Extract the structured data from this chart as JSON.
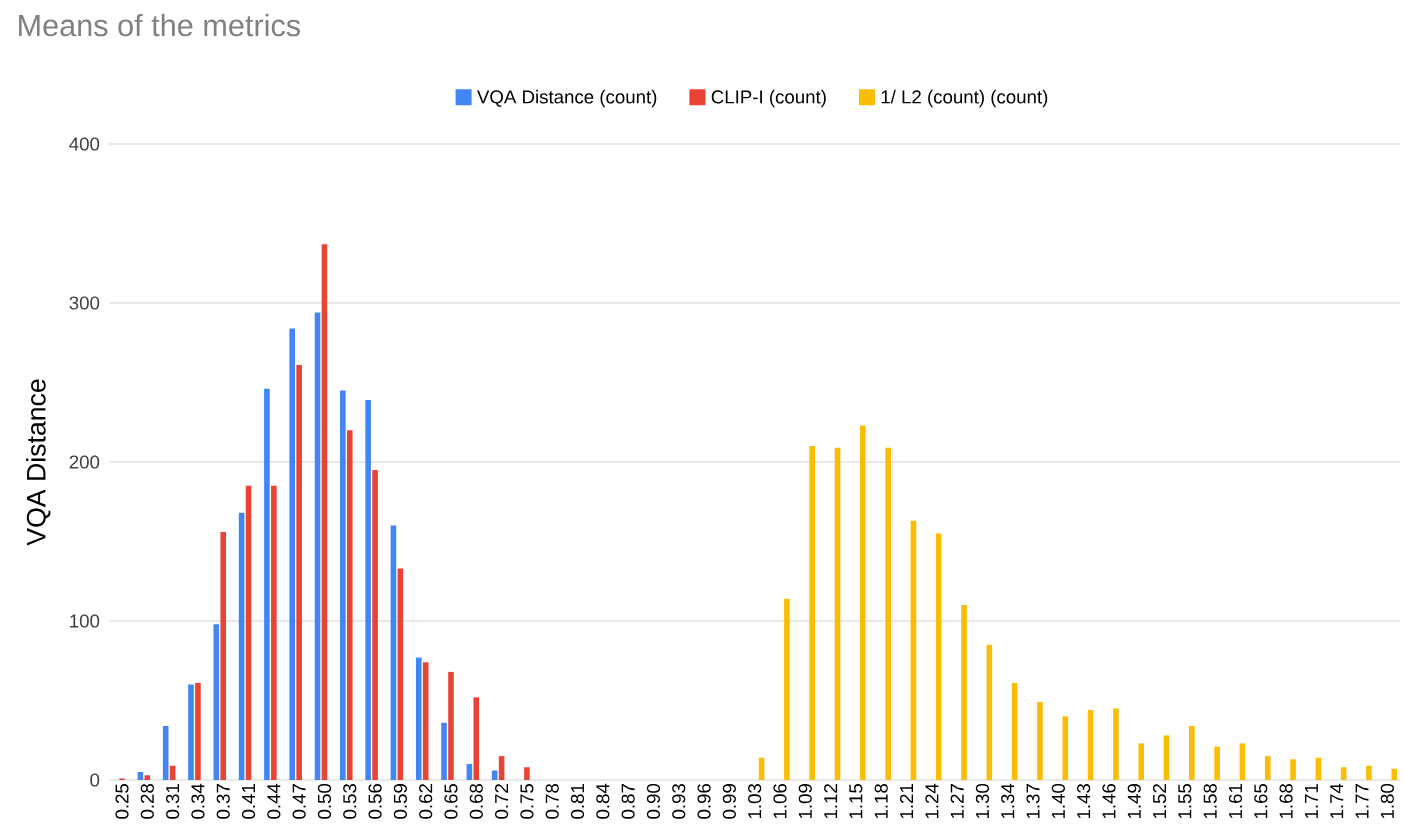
{
  "chart_data": {
    "type": "bar",
    "title": "Means of the metrics",
    "ylabel": "VQA Distance",
    "categories": [
      "0.25",
      "0.28",
      "0.31",
      "0.34",
      "0.37",
      "0.41",
      "0.44",
      "0.47",
      "0.50",
      "0.53",
      "0.56",
      "0.59",
      "0.62",
      "0.65",
      "0.68",
      "0.72",
      "0.75",
      "0.78",
      "0.81",
      "0.84",
      "0.87",
      "0.90",
      "0.93",
      "0.96",
      "0.99",
      "1.03",
      "1.06",
      "1.09",
      "1.12",
      "1.15",
      "1.18",
      "1.21",
      "1.24",
      "1.27",
      "1.30",
      "1.34",
      "1.37",
      "1.40",
      "1.43",
      "1.46",
      "1.49",
      "1.52",
      "1.55",
      "1.58",
      "1.61",
      "1.65",
      "1.68",
      "1.71",
      "1.74",
      "1.77",
      "1.80"
    ],
    "series": [
      {
        "name": "VQA Distance (count)",
        "color": "#4285f4",
        "values": [
          0,
          5,
          34,
          60,
          98,
          168,
          246,
          284,
          294,
          245,
          239,
          160,
          77,
          36,
          10,
          6,
          0,
          0,
          0,
          0,
          0,
          0,
          0,
          0,
          0,
          0,
          0,
          0,
          0,
          0,
          0,
          0,
          0,
          0,
          0,
          0,
          0,
          0,
          0,
          0,
          0,
          0,
          0,
          0,
          0,
          0,
          0,
          0,
          0,
          0,
          0
        ]
      },
      {
        "name": "CLIP-I (count)",
        "color": "#ea4335",
        "values": [
          1,
          3,
          9,
          61,
          156,
          185,
          185,
          261,
          337,
          220,
          195,
          133,
          74,
          68,
          52,
          15,
          8,
          0,
          0,
          0,
          0,
          0,
          0,
          0,
          0,
          0,
          0,
          0,
          0,
          0,
          0,
          0,
          0,
          0,
          0,
          0,
          0,
          0,
          0,
          0,
          0,
          0,
          0,
          0,
          0,
          0,
          0,
          0,
          0,
          0,
          0
        ]
      },
      {
        "name": "1/ L2 (count) (count)",
        "color": "#fbbc04",
        "values": [
          0,
          0,
          0,
          0,
          0,
          0,
          0,
          0,
          0,
          0,
          0,
          0,
          0,
          0,
          0,
          0,
          0,
          0,
          0,
          0,
          0,
          0,
          0,
          0,
          0,
          14,
          114,
          210,
          209,
          223,
          209,
          163,
          155,
          110,
          85,
          61,
          49,
          40,
          44,
          45,
          23,
          28,
          34,
          21,
          23,
          15,
          13,
          14,
          8,
          9,
          7
        ]
      }
    ],
    "ylim": [
      0,
      400
    ],
    "yticks": [
      0,
      100,
      200,
      300,
      400
    ],
    "grid": "y",
    "legend": "top"
  }
}
